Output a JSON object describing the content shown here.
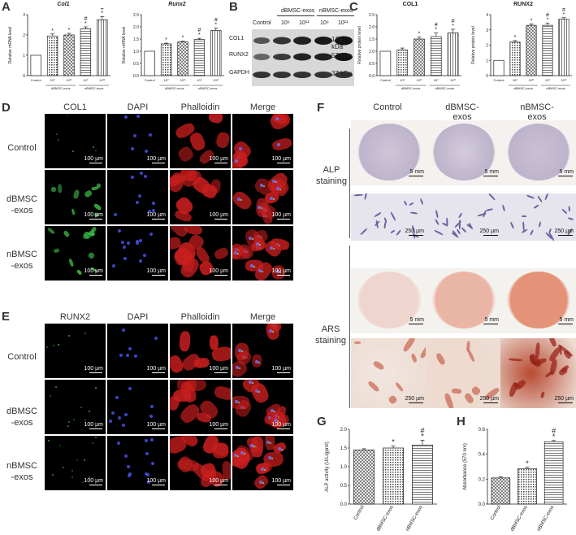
{
  "panels": {
    "A": "A",
    "B": "B",
    "C": "C",
    "D": "D",
    "E": "E",
    "F": "F",
    "G": "G",
    "H": "H"
  },
  "panel_a": {
    "charts": [
      {
        "title": "Col1",
        "ylabel": "Relative mRNA level",
        "ylim": [
          0,
          3
        ],
        "ticks": [
          "0",
          "1",
          "2",
          "3"
        ],
        "categories": [
          "Control",
          "10⁹",
          "10¹¹",
          "10⁹",
          "10¹¹"
        ],
        "values": [
          1.0,
          1.95,
          2.0,
          2.3,
          2.75
        ],
        "errors": [
          0,
          0.1,
          0.08,
          0.1,
          0.15
        ],
        "marks": [
          "",
          "*",
          "*",
          "#\n*",
          "#\n*"
        ],
        "groups": [
          "dBMSC-exos",
          "nBMSC-exos"
        ]
      },
      {
        "title": "Runx2",
        "ylabel": "Relative mRNA level",
        "ylim": [
          0,
          2.5
        ],
        "ticks": [
          "0.0",
          "0.5",
          "1.0",
          "1.5",
          "2.0",
          "2.5"
        ],
        "categories": [
          "Control",
          "10⁹",
          "10¹¹",
          "10⁹",
          "10¹¹"
        ],
        "values": [
          1.0,
          1.3,
          1.38,
          1.48,
          1.85
        ],
        "errors": [
          0,
          0.03,
          0.03,
          0.05,
          0.1
        ],
        "marks": [
          "",
          "*",
          "*",
          "#\n*",
          "#\n*"
        ],
        "groups": [
          "dBMSC-exos",
          "nBMSC-exos"
        ]
      }
    ]
  },
  "panel_b": {
    "groups": [
      "dBMSC-exos",
      "nBMSC-exos"
    ],
    "lanes": [
      "Control",
      "10⁹",
      "10¹¹",
      "10⁹",
      "10¹¹"
    ],
    "bands": [
      {
        "name": "COL1",
        "kda": "139 kDa"
      },
      {
        "name": "RUNX2",
        "kda": "57 kDa"
      },
      {
        "name": "GAPDH",
        "kda": "37 kDa"
      }
    ]
  },
  "panel_c": {
    "charts": [
      {
        "title": "COL1",
        "ylabel": "Relative protein level",
        "ylim": [
          0,
          2.5
        ],
        "ticks": [
          "0.0",
          "0.5",
          "1.0",
          "1.5",
          "2.0",
          "2.5"
        ],
        "categories": [
          "Control",
          "10⁹",
          "10¹¹",
          "10⁹",
          "10¹¹"
        ],
        "values": [
          1.0,
          1.05,
          1.5,
          1.6,
          1.75
        ],
        "errors": [
          0,
          0.08,
          0.08,
          0.15,
          0.15
        ],
        "marks": [
          "",
          "",
          "*",
          "#\n*",
          "#\n*"
        ],
        "groups": [
          "dBMSC-exos",
          "nBMSC-exos"
        ]
      },
      {
        "title": "RUNX2",
        "ylabel": "Relative protein level",
        "ylim": [
          0,
          4
        ],
        "ticks": [
          "0",
          "1",
          "2",
          "3",
          "4"
        ],
        "categories": [
          "Control",
          "10⁹",
          "10¹¹",
          "10⁹",
          "10¹¹"
        ],
        "values": [
          1.0,
          2.2,
          3.3,
          3.3,
          3.7
        ],
        "errors": [
          0,
          0.1,
          0.08,
          0.15,
          0.1
        ],
        "marks": [
          "",
          "*",
          "*",
          "#\n*",
          "#\n*"
        ],
        "groups": [
          "dBMSC-exos",
          "nBMSC-exos"
        ]
      }
    ]
  },
  "panel_d": {
    "columns": [
      "COL1",
      "DAPI",
      "Phalloidin",
      "Merge"
    ],
    "rows": [
      "Control",
      "dBMSC\n-exos",
      "nBMSC\n-exos"
    ],
    "scale": "100 µm"
  },
  "panel_e": {
    "columns": [
      "RUNX2",
      "DAPI",
      "Phalloidin",
      "Merge"
    ],
    "rows": [
      "Control",
      "dBMSC\n-exos",
      "nBMSC\n-exos"
    ],
    "scale": "100 µm"
  },
  "panel_f": {
    "columns": [
      "Control",
      "dBMSC-\nexos",
      "nBMSC-\nexos"
    ],
    "rows": [
      "ALP\nstaining",
      "ARS\nstaining"
    ],
    "well_scale": "5 mm",
    "micro_scale": "250 µm"
  },
  "panel_g": {
    "chart_data": {
      "type": "bar",
      "ylabel": "ALP activity (U/L/gprot)",
      "ylim": [
        0,
        2.0
      ],
      "ticks": [
        "0.0",
        "0.5",
        "1.0",
        "1.5",
        "2.0"
      ],
      "categories": [
        "Control",
        "dBMSC-exos",
        "nBMSC-exos"
      ],
      "values": [
        1.45,
        1.5,
        1.58
      ],
      "errors": [
        0.03,
        0.05,
        0.13
      ],
      "marks": [
        "",
        "*",
        "#\n*"
      ]
    }
  },
  "panel_h": {
    "chart_data": {
      "type": "bar",
      "ylabel": "Absorbance (570 nm)",
      "ylim": [
        0,
        0.6
      ],
      "ticks": [
        "0.0",
        "0.2",
        "0.4",
        "0.6"
      ],
      "categories": [
        "Control",
        "dBMSC-exos",
        "nBMSC-exos"
      ],
      "values": [
        0.21,
        0.285,
        0.5
      ],
      "errors": [
        0.01,
        0.01,
        0.01
      ],
      "marks": [
        "",
        "*",
        "#\n*"
      ]
    }
  }
}
